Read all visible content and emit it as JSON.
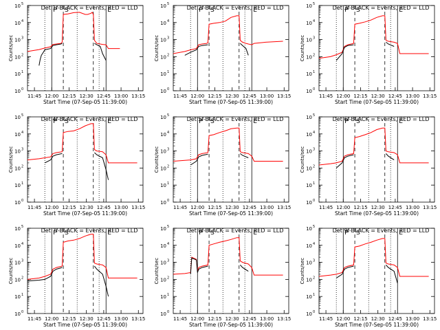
{
  "figure": {
    "ylabel": "Counts/sec",
    "xlabel": "Start Time (07-Sep-05 11:39:00)",
    "xtick_labels": [
      "11:45",
      "12:00",
      "12:15",
      "12:30",
      "12:45",
      "13:00",
      "13:15"
    ],
    "ytick_exponents": [
      0,
      1,
      2,
      3,
      4,
      5
    ],
    "marker_letters": [
      "P",
      "S",
      "E"
    ],
    "colors": {
      "events": "#000000",
      "lld": "#ff0000",
      "axes": "#000000"
    }
  },
  "chart_data": [
    {
      "type": "line",
      "title": "Det 1f-BLACK = Events, RED = LLD",
      "x_unit": "minutes since 11:39",
      "ylim": [
        1,
        100000
      ],
      "yscale": "log",
      "xlim": [
        0,
        100
      ],
      "dotted_x": [
        15,
        43,
        62
      ],
      "solid_x": [
        21,
        68
      ],
      "dashed_x": [
        31,
        57
      ],
      "series": [
        {
          "name": "LLD",
          "color": "#ff0000",
          "x": [
            0,
            10,
            15,
            20,
            22,
            25,
            29,
            30,
            31,
            35,
            40,
            45,
            50,
            52,
            55,
            56,
            57,
            58,
            60,
            63,
            65,
            68,
            70,
            75,
            80
          ],
          "y": [
            200,
            260,
            320,
            380,
            520,
            550,
            600,
            700,
            30000,
            32000,
            38000,
            40000,
            30000,
            30000,
            35000,
            40000,
            30000,
            900,
            600,
            550,
            520,
            500,
            300,
            300,
            300
          ]
        },
        {
          "name": "Events",
          "color": "#000000",
          "x": [
            10,
            11,
            12,
            13,
            15,
            20,
            22,
            25,
            29,
            30,
            31,
            57,
            58,
            60,
            63,
            65,
            68,
            70
          ],
          "y": [
            30,
            70,
            120,
            150,
            250,
            300,
            450,
            500,
            550,
            600,
            0,
            0,
            600,
            500,
            400,
            150,
            60,
            0
          ]
        }
      ]
    },
    {
      "type": "line",
      "title": "Det 2f-BLACK = Events, RED = LLD",
      "x_unit": "minutes since 11:39",
      "ylim": [
        1,
        100000
      ],
      "yscale": "log",
      "xlim": [
        0,
        100
      ],
      "dotted_x": [
        15,
        43,
        62
      ],
      "solid_x": [
        21,
        68
      ],
      "dashed_x": [
        31,
        57
      ],
      "series": [
        {
          "name": "LLD",
          "color": "#ff0000",
          "x": [
            0,
            10,
            15,
            20,
            22,
            25,
            29,
            30,
            31,
            35,
            40,
            45,
            50,
            55,
            57,
            58,
            60,
            63,
            65,
            68,
            70,
            80,
            95
          ],
          "y": [
            150,
            200,
            250,
            300,
            500,
            550,
            600,
            650,
            8000,
            9000,
            10000,
            12000,
            20000,
            25000,
            25000,
            900,
            700,
            600,
            550,
            500,
            600,
            700,
            800
          ]
        },
        {
          "name": "Events",
          "color": "#000000",
          "x": [
            10,
            15,
            20,
            22,
            25,
            30,
            31,
            57,
            58,
            60,
            63,
            65,
            68
          ],
          "y": [
            120,
            180,
            250,
            400,
            450,
            500,
            0,
            0,
            600,
            450,
            300,
            120,
            0
          ]
        }
      ]
    },
    {
      "type": "line",
      "title": "Det 3f-BLACK = Events, RED = LLD",
      "x_unit": "minutes since 11:39",
      "ylim": [
        1,
        100000
      ],
      "yscale": "log",
      "xlim": [
        0,
        100
      ],
      "dotted_x": [
        15,
        43,
        62
      ],
      "solid_x": [
        21,
        68
      ],
      "dashed_x": [
        31,
        57
      ],
      "series": [
        {
          "name": "LLD",
          "color": "#ff0000",
          "x": [
            0,
            10,
            15,
            20,
            22,
            25,
            30,
            31,
            35,
            40,
            45,
            50,
            55,
            57,
            58,
            60,
            65,
            68,
            70,
            80,
            95
          ],
          "y": [
            80,
            100,
            130,
            180,
            400,
            500,
            600,
            8000,
            9000,
            11000,
            14000,
            20000,
            25000,
            25000,
            900,
            800,
            700,
            600,
            150,
            150,
            150
          ]
        },
        {
          "name": "Events",
          "color": "#000000",
          "x": [
            15,
            20,
            22,
            25,
            30,
            31,
            57,
            58,
            60,
            65,
            68
          ],
          "y": [
            60,
            150,
            350,
            450,
            500,
            0,
            0,
            700,
            550,
            400,
            0
          ]
        }
      ]
    },
    {
      "type": "line",
      "title": "Det 4f-BLACK = Events, RED = LLD",
      "x_unit": "minutes since 11:39",
      "ylim": [
        1,
        100000
      ],
      "yscale": "log",
      "xlim": [
        0,
        100
      ],
      "dotted_x": [
        15,
        43,
        62
      ],
      "solid_x": [
        21,
        68
      ],
      "dashed_x": [
        31,
        57
      ],
      "series": [
        {
          "name": "LLD",
          "color": "#ff0000",
          "x": [
            0,
            10,
            15,
            20,
            22,
            25,
            30,
            31,
            35,
            40,
            45,
            50,
            55,
            57,
            58,
            60,
            65,
            68,
            70,
            80,
            95
          ],
          "y": [
            300,
            350,
            400,
            450,
            700,
            800,
            900,
            12000,
            14000,
            15000,
            20000,
            30000,
            40000,
            40000,
            1200,
            1000,
            900,
            600,
            200,
            200,
            200
          ]
        },
        {
          "name": "Events",
          "color": "#000000",
          "x": [
            15,
            20,
            22,
            25,
            30,
            31,
            57,
            58,
            60,
            65,
            68,
            70,
            72
          ],
          "y": [
            200,
            300,
            500,
            600,
            700,
            0,
            0,
            800,
            600,
            400,
            80,
            20,
            0
          ]
        }
      ]
    },
    {
      "type": "line",
      "title": "Det 5f-BLACK = Events, RED = LLD",
      "x_unit": "minutes since 11:39",
      "ylim": [
        1,
        100000
      ],
      "yscale": "log",
      "xlim": [
        0,
        100
      ],
      "dotted_x": [
        15,
        43,
        62
      ],
      "solid_x": [
        21,
        68
      ],
      "dashed_x": [
        31,
        57
      ],
      "series": [
        {
          "name": "LLD",
          "color": "#ff0000",
          "x": [
            0,
            10,
            15,
            20,
            22,
            25,
            30,
            31,
            35,
            40,
            45,
            50,
            55,
            57,
            58,
            60,
            65,
            68,
            70,
            80,
            95
          ],
          "y": [
            250,
            280,
            300,
            350,
            600,
            700,
            800,
            8000,
            9000,
            12000,
            15000,
            20000,
            22000,
            22000,
            900,
            800,
            700,
            500,
            250,
            250,
            250
          ]
        },
        {
          "name": "Events",
          "color": "#000000",
          "x": [
            15,
            20,
            22,
            25,
            30,
            31,
            57,
            58,
            60,
            65,
            68
          ],
          "y": [
            150,
            250,
            450,
            550,
            650,
            0,
            0,
            700,
            550,
            400,
            0
          ]
        }
      ]
    },
    {
      "type": "line",
      "title": "Det 6f-BLACK = Events, RED = LLD",
      "x_unit": "minutes since 11:39",
      "ylim": [
        1,
        100000
      ],
      "yscale": "log",
      "xlim": [
        0,
        100
      ],
      "dotted_x": [
        15,
        43,
        62
      ],
      "solid_x": [
        21,
        68
      ],
      "dashed_x": [
        31,
        57
      ],
      "series": [
        {
          "name": "LLD",
          "color": "#ff0000",
          "x": [
            0,
            10,
            15,
            20,
            22,
            25,
            30,
            31,
            35,
            40,
            45,
            50,
            55,
            57,
            58,
            60,
            65,
            68,
            70,
            80,
            95
          ],
          "y": [
            150,
            180,
            200,
            250,
            500,
            600,
            700,
            6000,
            7000,
            9000,
            12000,
            18000,
            22000,
            22000,
            1000,
            900,
            800,
            600,
            200,
            200,
            200
          ]
        },
        {
          "name": "Events",
          "color": "#000000",
          "x": [
            15,
            20,
            22,
            25,
            30,
            31,
            57,
            58,
            60,
            65,
            68
          ],
          "y": [
            100,
            200,
            400,
            500,
            600,
            0,
            0,
            700,
            500,
            300,
            0
          ]
        }
      ]
    },
    {
      "type": "line",
      "title": "Det 7f-BLACK = Events, RED = LLD",
      "x_unit": "minutes since 11:39",
      "ylim": [
        1,
        100000
      ],
      "yscale": "log",
      "xlim": [
        0,
        100
      ],
      "dotted_x": [
        15,
        43,
        62
      ],
      "solid_x": [
        21,
        68
      ],
      "dashed_x": [
        31,
        57
      ],
      "series": [
        {
          "name": "LLD",
          "color": "#ff0000",
          "x": [
            0,
            10,
            15,
            20,
            22,
            25,
            30,
            31,
            35,
            40,
            45,
            50,
            55,
            57,
            58,
            60,
            65,
            68,
            70,
            80,
            95
          ],
          "y": [
            100,
            120,
            150,
            200,
            400,
            500,
            600,
            15000,
            18000,
            20000,
            25000,
            35000,
            45000,
            45000,
            900,
            800,
            700,
            500,
            120,
            120,
            120
          ]
        },
        {
          "name": "Events",
          "color": "#000000",
          "x": [
            0,
            10,
            15,
            20,
            22,
            25,
            30,
            31,
            57,
            58,
            60,
            65,
            68,
            70,
            72
          ],
          "y": [
            80,
            90,
            100,
            150,
            300,
            400,
            500,
            0,
            0,
            600,
            400,
            200,
            40,
            10,
            0
          ]
        }
      ]
    },
    {
      "type": "line",
      "title": "Det 8f-BLACK = Events, RED = LLD",
      "x_unit": "minutes since 11:39",
      "ylim": [
        1,
        100000
      ],
      "yscale": "log",
      "xlim": [
        0,
        100
      ],
      "dotted_x": [
        15,
        43,
        62
      ],
      "solid_x": [
        21,
        68
      ],
      "dashed_x": [
        31,
        57
      ],
      "series": [
        {
          "name": "LLD",
          "color": "#ff0000",
          "x": [
            0,
            10,
            15,
            16,
            20,
            21,
            22,
            25,
            30,
            31,
            35,
            40,
            45,
            50,
            55,
            57,
            58,
            60,
            65,
            68,
            70,
            80,
            95
          ],
          "y": [
            200,
            220,
            250,
            2000,
            1500,
            300,
            500,
            600,
            700,
            10000,
            12000,
            15000,
            18000,
            22000,
            28000,
            28000,
            1200,
            1000,
            800,
            500,
            180,
            180,
            180
          ]
        },
        {
          "name": "Events",
          "color": "#000000",
          "x": [
            15,
            16,
            20,
            21,
            22,
            25,
            30,
            31,
            57,
            58,
            60,
            65,
            68
          ],
          "y": [
            200,
            1800,
            1400,
            250,
            400,
            500,
            600,
            0,
            0,
            700,
            500,
            300,
            0
          ]
        }
      ]
    },
    {
      "type": "line",
      "title": "Det 9f-BLACK = Events, RED = LLD",
      "x_unit": "minutes since 11:39",
      "ylim": [
        1,
        100000
      ],
      "yscale": "log",
      "xlim": [
        0,
        100
      ],
      "dotted_x": [
        15,
        43,
        62
      ],
      "solid_x": [
        21,
        68
      ],
      "dashed_x": [
        31,
        57
      ],
      "series": [
        {
          "name": "LLD",
          "color": "#ff0000",
          "x": [
            0,
            10,
            15,
            20,
            22,
            25,
            30,
            31,
            35,
            40,
            45,
            50,
            55,
            57,
            58,
            60,
            65,
            68,
            70,
            80,
            95
          ],
          "y": [
            150,
            180,
            200,
            250,
            500,
            600,
            700,
            8000,
            9000,
            12000,
            15000,
            20000,
            25000,
            25000,
            900,
            800,
            700,
            500,
            150,
            150,
            150
          ]
        },
        {
          "name": "Events",
          "color": "#000000",
          "x": [
            15,
            20,
            22,
            25,
            30,
            31,
            57,
            58,
            60,
            65,
            68,
            70
          ],
          "y": [
            120,
            200,
            400,
            500,
            600,
            0,
            0,
            700,
            500,
            300,
            60,
            0
          ]
        }
      ]
    }
  ]
}
